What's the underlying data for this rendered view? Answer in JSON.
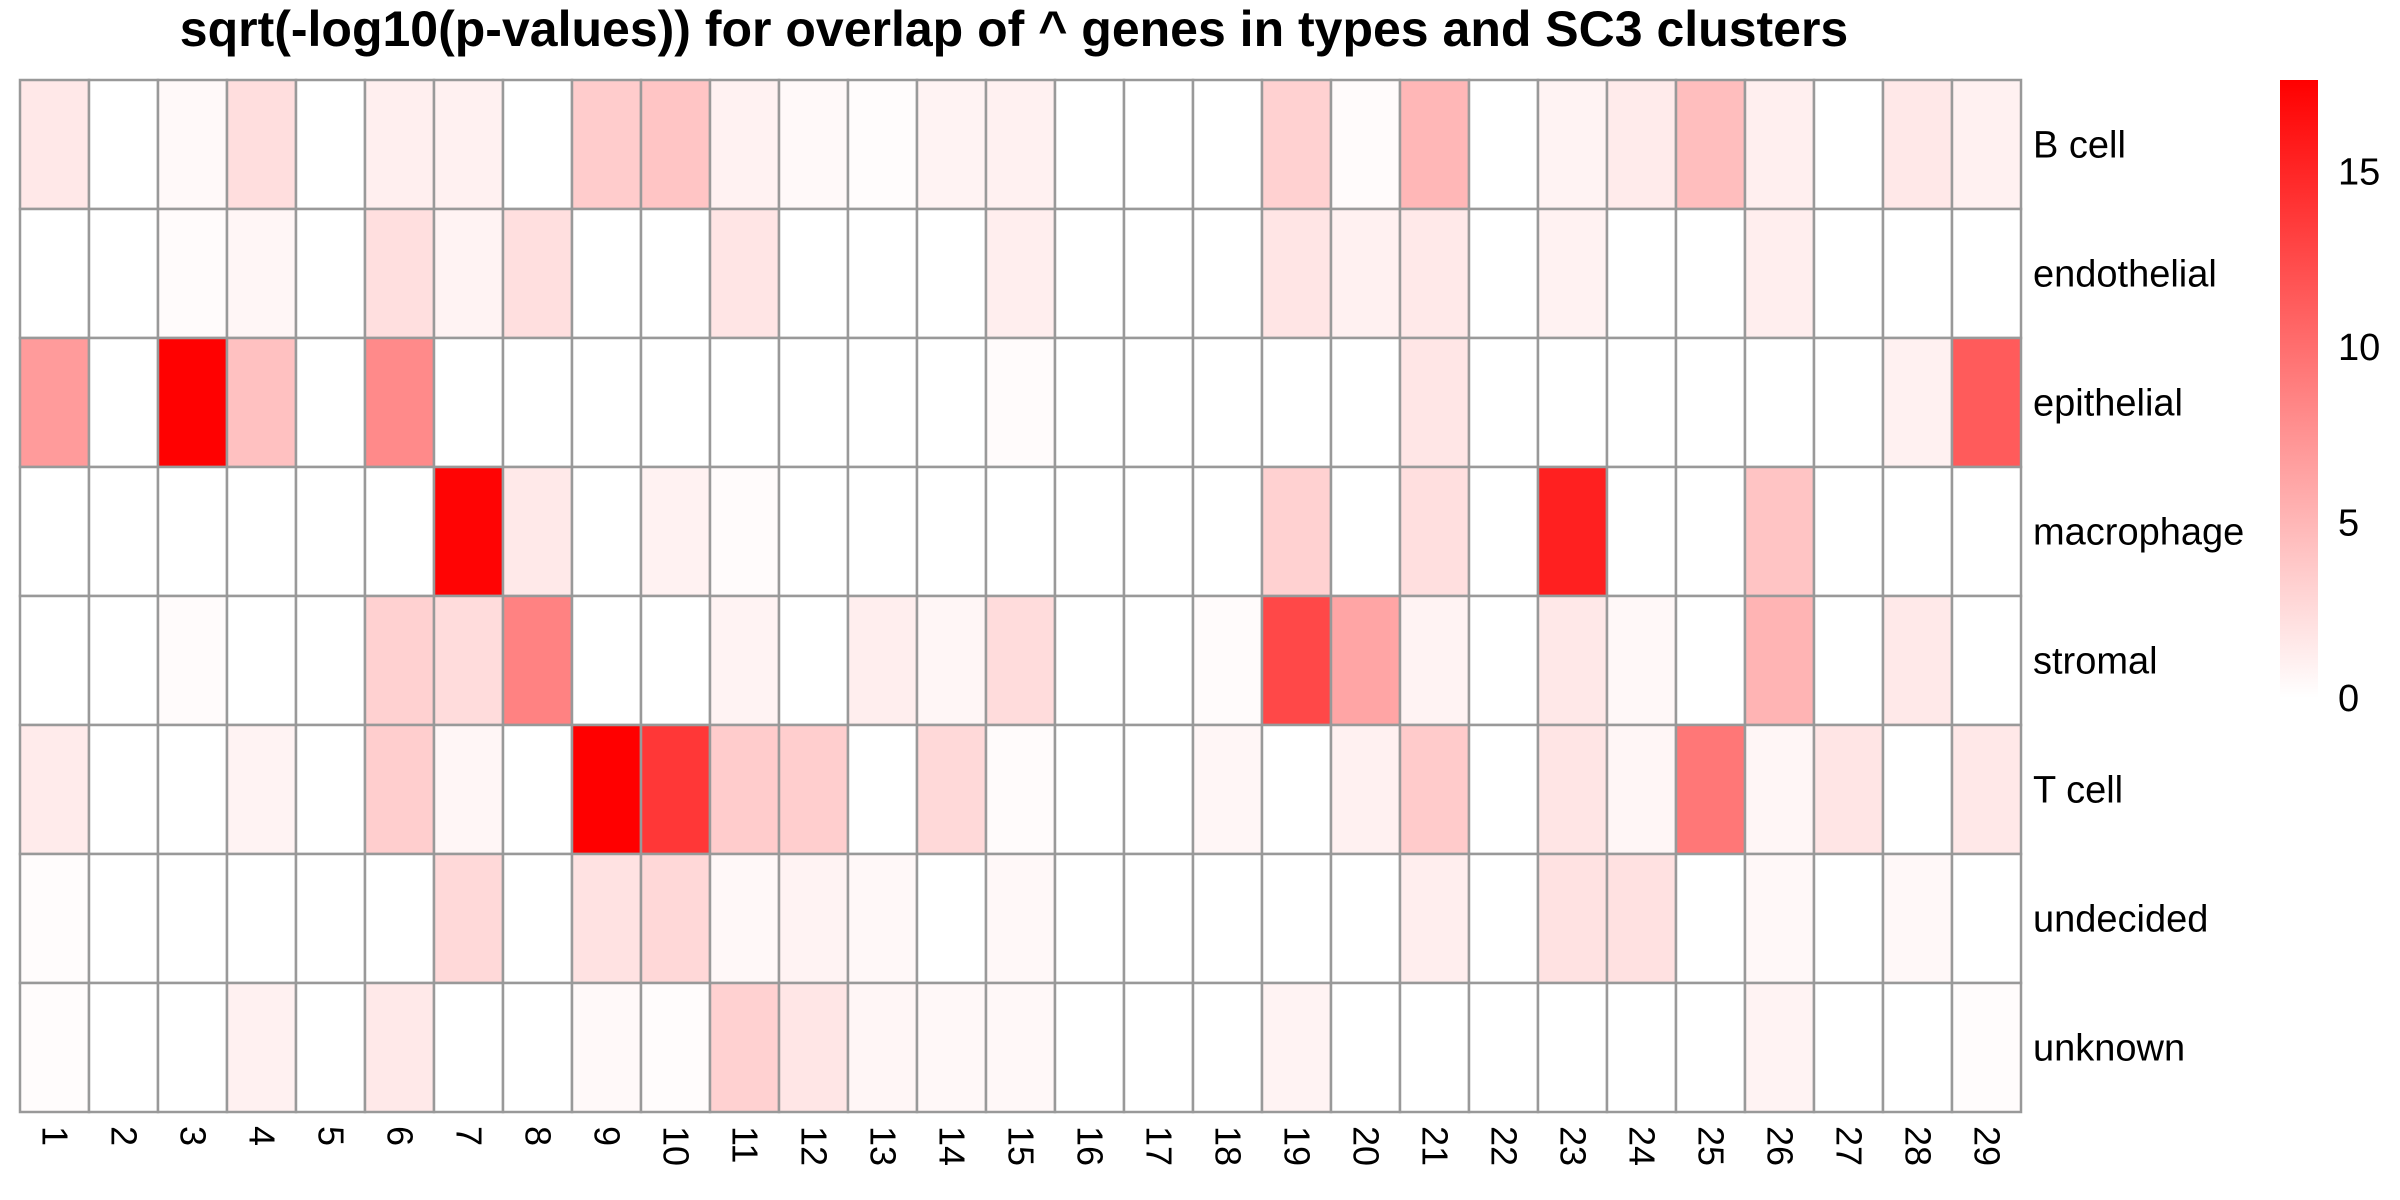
{
  "chart_data": {
    "type": "heatmap",
    "title": "sqrt(-log10(p-values)) for overlap of ^ genes in types and SC3 clusters",
    "rows": [
      "B cell",
      "endothelial",
      "epithelial",
      "macrophage",
      "stromal",
      "T cell",
      "undecided",
      "unknown"
    ],
    "columns": [
      "1",
      "2",
      "3",
      "4",
      "5",
      "6",
      "7",
      "8",
      "9",
      "10",
      "11",
      "12",
      "13",
      "14",
      "15",
      "16",
      "17",
      "18",
      "19",
      "20",
      "21",
      "22",
      "23",
      "24",
      "25",
      "26",
      "27",
      "28",
      "29"
    ],
    "values": [
      [
        1.6,
        0,
        0.4,
        2.3,
        0,
        1.1,
        1.0,
        0,
        3.5,
        4.0,
        0.9,
        0.4,
        0.2,
        0.8,
        1.0,
        0,
        0,
        0,
        3.2,
        0.3,
        5.0,
        0,
        0.8,
        1.4,
        4.5,
        1.1,
        0,
        1.6,
        1.0
      ],
      [
        0,
        0,
        0.3,
        0.6,
        0,
        2.2,
        0.8,
        2.2,
        0,
        0,
        1.8,
        0,
        0,
        0,
        1.2,
        0,
        0,
        0,
        1.8,
        1.0,
        1.5,
        0,
        0.9,
        0,
        0,
        1.2,
        0,
        0,
        0
      ],
      [
        6.9,
        0,
        17.5,
        4.3,
        0,
        8.1,
        0,
        0,
        0,
        0,
        0,
        0,
        0,
        0,
        0.3,
        0,
        0,
        0,
        0,
        0,
        1.7,
        0,
        0,
        0,
        0,
        0,
        0,
        1.0,
        11.3
      ],
      [
        0,
        0,
        0,
        0,
        0,
        0,
        17.3,
        1.5,
        0,
        0.9,
        0.3,
        0,
        0,
        0,
        0,
        0,
        0,
        0,
        3.2,
        0,
        2.2,
        0,
        15.4,
        0,
        0,
        4.1,
        0,
        0,
        0
      ],
      [
        0,
        0,
        0.3,
        0,
        0,
        3.2,
        2.4,
        8.6,
        0,
        0,
        0.8,
        0,
        1.2,
        0.6,
        2.4,
        0,
        0,
        0.3,
        12.6,
        6.2,
        0.8,
        0,
        1.6,
        0.5,
        0,
        5.2,
        0,
        1.5,
        0
      ],
      [
        1.4,
        0,
        0,
        0.8,
        0,
        3.4,
        0.6,
        0,
        17.6,
        13.8,
        3.5,
        3.4,
        0,
        2.6,
        0.3,
        0,
        0,
        0.6,
        0,
        1.0,
        3.6,
        0,
        1.8,
        0.6,
        9.4,
        0.6,
        1.8,
        0,
        1.6
      ],
      [
        0.2,
        0,
        0,
        0,
        0,
        0,
        2.6,
        0,
        2.0,
        2.7,
        0.5,
        0.8,
        0.5,
        0,
        0.5,
        0,
        0,
        0,
        0,
        0,
        1.2,
        0,
        2.0,
        2.1,
        0,
        0.5,
        0,
        0.5,
        0
      ],
      [
        0.2,
        0,
        0,
        1.0,
        0,
        1.5,
        0,
        0,
        0.4,
        0.2,
        3.2,
        1.7,
        0.6,
        0.5,
        0.5,
        0,
        0,
        0,
        0.8,
        0,
        0,
        0,
        0,
        0,
        0,
        0.8,
        0,
        0,
        0.2
      ]
    ],
    "color_min": "#ffffff",
    "color_max": "#ff0000",
    "scale_range": [
      0,
      17.6
    ],
    "legend": {
      "placement": "right",
      "ticks": [
        0,
        5,
        10,
        15
      ]
    },
    "grid": true
  }
}
